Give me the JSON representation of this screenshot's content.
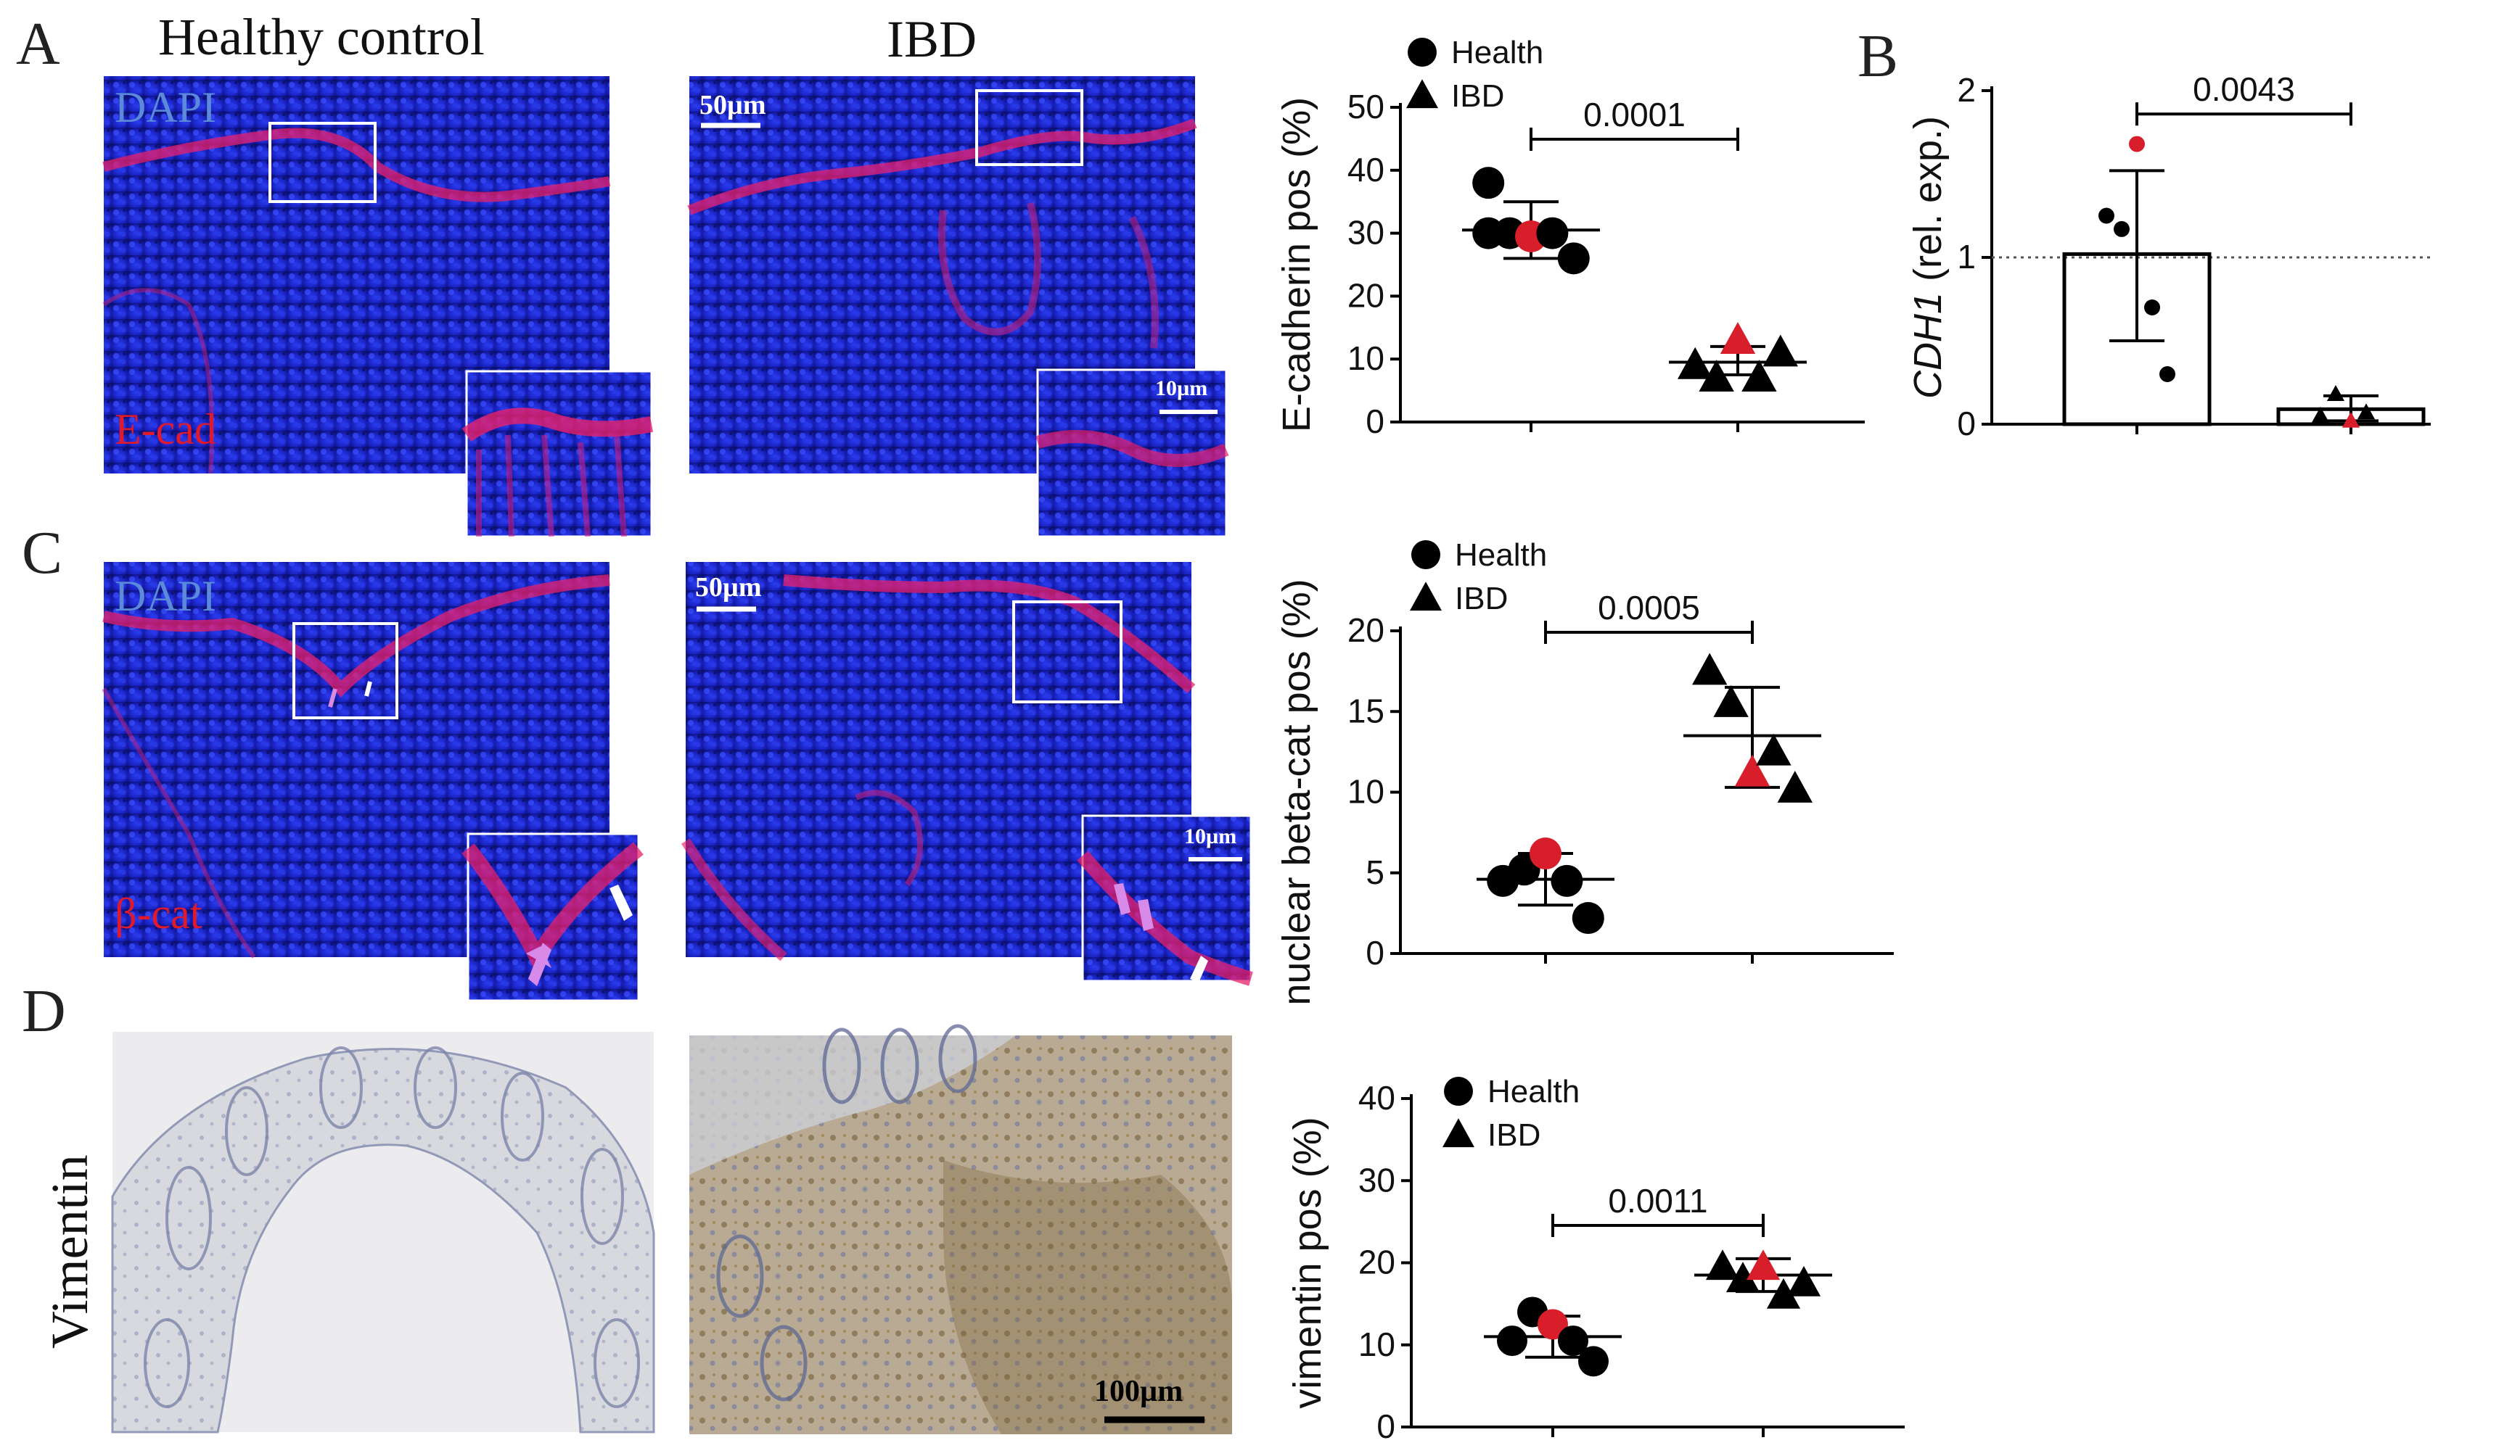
{
  "panels": {
    "A": "A",
    "B": "B",
    "C": "C",
    "D": "D"
  },
  "columns": {
    "healthy": "Healthy control",
    "ibd": "IBD"
  },
  "rows": {
    "vimentin": "Vimentin"
  },
  "stains": {
    "dapi": "DAPI",
    "ecad": "E-cad",
    "bcat": "β-cat"
  },
  "scalebars": {
    "s50": "50µm",
    "s10": "10µm",
    "s100": "100µm"
  },
  "colors": {
    "health": "#000000",
    "ibd": "#000000",
    "highlight": "#d81e2a",
    "dapi": "#1420c8",
    "stain": "#e8206a",
    "ihc_brown": "#9a7a4a"
  },
  "chart_data": [
    {
      "id": "ecad",
      "type": "scatter",
      "ylabel": "E-cadherin pos (%)",
      "ylim": [
        0,
        50
      ],
      "yticks": [
        0,
        10,
        20,
        30,
        40,
        50
      ],
      "legend": [
        "Health",
        "IBD"
      ],
      "pvalue": "0.0001",
      "series": [
        {
          "name": "Health",
          "marker": "circle",
          "values": [
            30,
            30,
            30,
            26,
            38
          ],
          "highlight": [
            29.5
          ],
          "mean": 30.5,
          "sd_upper": 35,
          "sd_lower": 26
        },
        {
          "name": "IBD",
          "marker": "triangle",
          "values": [
            9,
            7,
            7,
            11
          ],
          "highlight": [
            13
          ],
          "mean": 9.5,
          "sd_upper": 12,
          "sd_lower": 7.5
        }
      ]
    },
    {
      "id": "cdh1",
      "type": "bar",
      "ylabel": "CDH1 (rel. exp.)",
      "ylim": [
        0,
        2
      ],
      "yticks": [
        0,
        1,
        2
      ],
      "reference_line": 1,
      "pvalue": "0.0043",
      "series": [
        {
          "name": "Health",
          "marker": "circle",
          "bar": 1.02,
          "values": [
            1.25,
            1.17,
            0.7,
            0.3
          ],
          "highlight": [
            1.68
          ],
          "sd_upper": 1.52,
          "sd_lower": 0.5
        },
        {
          "name": "IBD",
          "marker": "triangle",
          "bar": 0.09,
          "values": [
            0.05,
            0.18,
            0.07
          ],
          "highlight": [
            0.02
          ],
          "sd_upper": 0.17,
          "sd_lower": 0.02
        }
      ]
    },
    {
      "id": "betacat",
      "type": "scatter",
      "ylabel": "nuclear beta-cat pos (%)",
      "ylim": [
        0,
        20
      ],
      "yticks": [
        0,
        5,
        10,
        15,
        20
      ],
      "legend": [
        "Health",
        "IBD"
      ],
      "pvalue": "0.0005",
      "series": [
        {
          "name": "Health",
          "marker": "circle",
          "values": [
            4.5,
            5.2,
            4.5,
            2.2
          ],
          "highlight": [
            6.2
          ],
          "mean": 4.6,
          "sd_upper": 6.2,
          "sd_lower": 3
        },
        {
          "name": "IBD",
          "marker": "triangle",
          "values": [
            17.5,
            15.5,
            12.5,
            10.2
          ],
          "highlight": [
            11.2
          ],
          "mean": 13.5,
          "sd_upper": 16.5,
          "sd_lower": 10.3
        }
      ]
    },
    {
      "id": "vimentin",
      "type": "scatter",
      "ylabel": "vimentin pos (%)",
      "ylim": [
        0,
        40
      ],
      "yticks": [
        0,
        10,
        20,
        30,
        40
      ],
      "legend": [
        "Health",
        "IBD"
      ],
      "pvalue": "0.0011",
      "series": [
        {
          "name": "Health",
          "marker": "circle",
          "values": [
            10.5,
            14,
            10.5,
            8
          ],
          "highlight": [
            12.5
          ],
          "mean": 11,
          "sd_upper": 13.5,
          "sd_lower": 8.5
        },
        {
          "name": "IBD",
          "marker": "triangle",
          "values": [
            19.5,
            18,
            16,
            17.5
          ],
          "highlight": [
            19.5
          ],
          "mean": 18.5,
          "sd_upper": 20.5,
          "sd_lower": 16.5
        }
      ]
    }
  ]
}
